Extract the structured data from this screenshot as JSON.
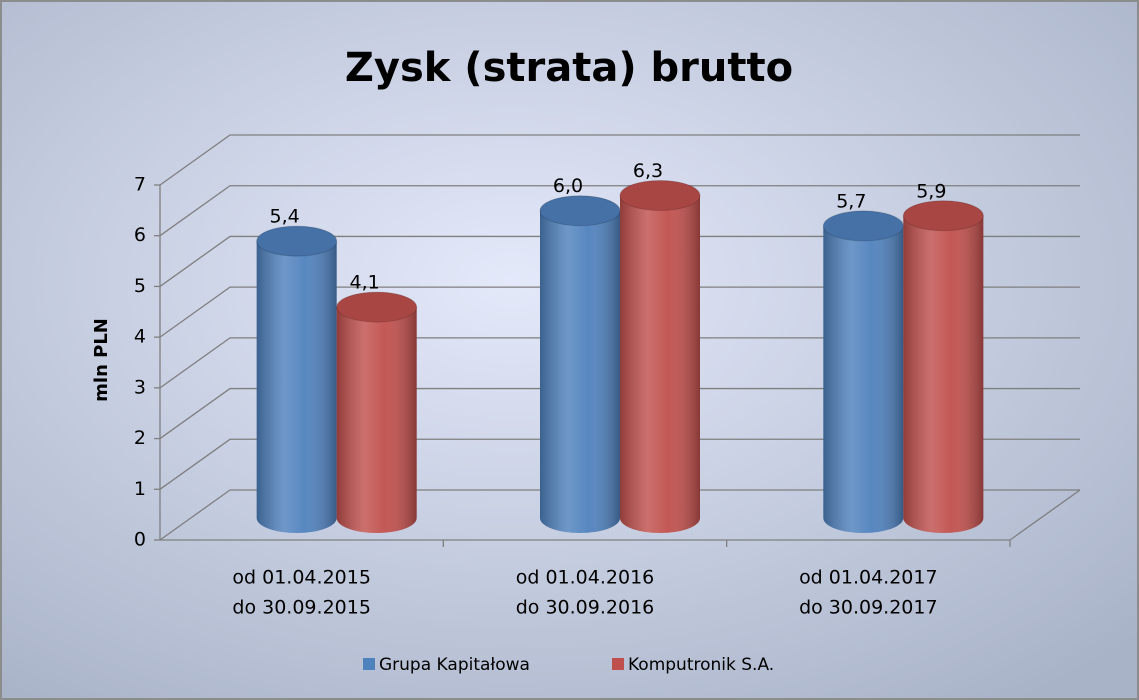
{
  "chart_data": {
    "type": "bar3d",
    "title": "Zysk (strata) brutto",
    "y_axis_label": "mln PLN",
    "categories": [
      [
        "od 01.04.2015",
        "do 30.09.2015"
      ],
      [
        "od 01.04.2016",
        "do 30.09.2016"
      ],
      [
        "od 01.04.2017",
        "do 30.09.2017"
      ]
    ],
    "series": [
      {
        "name": "Grupa Kapitałowa",
        "color": "#4f81bd",
        "values": [
          5.4,
          6.0,
          5.7
        ],
        "value_labels": [
          "5,4",
          "6,0",
          "5,7"
        ]
      },
      {
        "name": "Komputronik S.A.",
        "color": "#c0504d",
        "values": [
          4.1,
          6.3,
          5.9
        ],
        "value_labels": [
          "4,1",
          "6,3",
          "5,9"
        ]
      }
    ],
    "ylim": [
      0,
      7
    ],
    "yticks": [
      0,
      1,
      2,
      3,
      4,
      5,
      6,
      7
    ],
    "grid": true,
    "legend": "bottom"
  }
}
